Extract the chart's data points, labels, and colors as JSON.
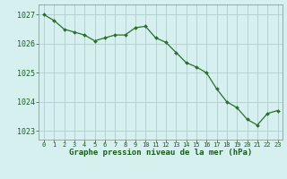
{
  "x": [
    0,
    1,
    2,
    3,
    4,
    5,
    6,
    7,
    8,
    9,
    10,
    11,
    12,
    13,
    14,
    15,
    16,
    17,
    18,
    19,
    20,
    21,
    22,
    23
  ],
  "y": [
    1027.0,
    1026.8,
    1026.5,
    1026.4,
    1026.3,
    1026.1,
    1026.2,
    1026.3,
    1026.3,
    1026.55,
    1026.6,
    1026.2,
    1026.05,
    1025.7,
    1025.35,
    1025.2,
    1025.0,
    1024.45,
    1024.0,
    1023.8,
    1023.4,
    1023.2,
    1023.6,
    1023.7
  ],
  "line_color": "#2d6e2d",
  "marker_color": "#2d6e2d",
  "bg_color": "#d5f0ef",
  "grid_color_major": "#b0cccc",
  "grid_color_minor": "#c8e0e0",
  "xlabel": "Graphe pression niveau de la mer (hPa)",
  "xlabel_color": "#1a5c1a",
  "tick_color": "#1a5c1a",
  "ylim": [
    1022.7,
    1027.35
  ],
  "yticks": [
    1023,
    1024,
    1025,
    1026,
    1027
  ],
  "xticks": [
    0,
    1,
    2,
    3,
    4,
    5,
    6,
    7,
    8,
    9,
    10,
    11,
    12,
    13,
    14,
    15,
    16,
    17,
    18,
    19,
    20,
    21,
    22,
    23
  ],
  "spine_color": "#888888"
}
